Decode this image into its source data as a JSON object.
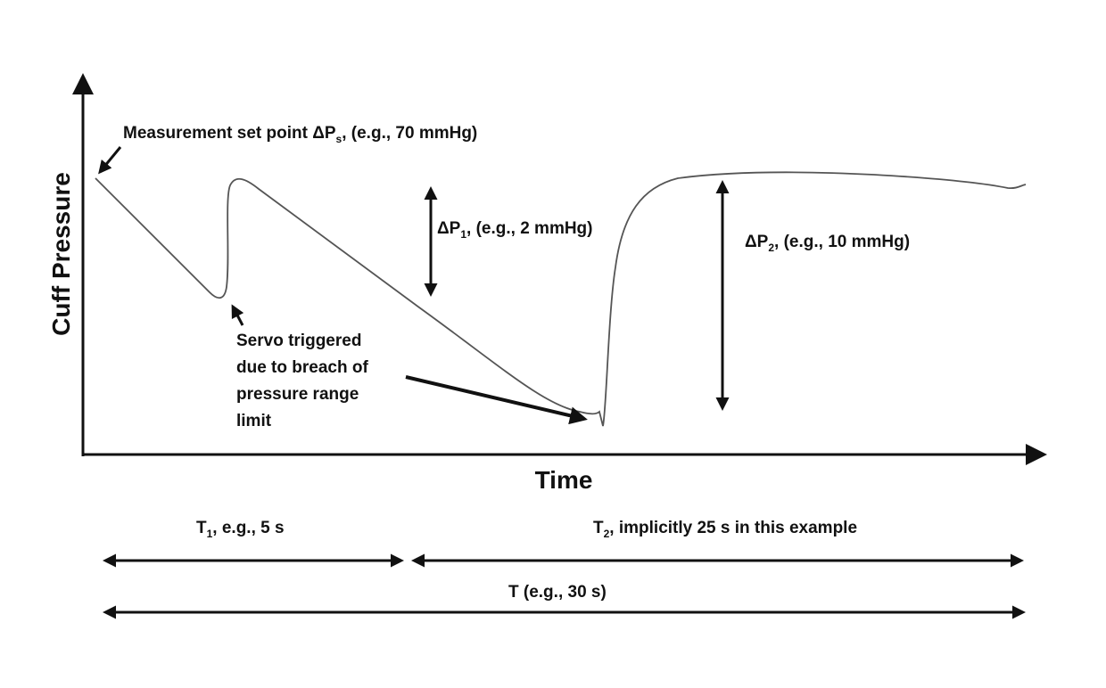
{
  "axes": {
    "y_label": "Cuff Pressure",
    "x_label": "Time"
  },
  "annotations": {
    "set_point": {
      "prefix": "Measurement set point ΔP",
      "sub": "s",
      "suffix": ", (e.g., 70 mmHg)"
    },
    "dp1": {
      "prefix": "ΔP",
      "sub": "1",
      "suffix": ", (e.g., 2 mmHg)"
    },
    "dp2": {
      "prefix": "ΔP",
      "sub": "2",
      "suffix": ", (e.g., 10 mmHg)"
    },
    "servo": {
      "lines": [
        "Servo triggered",
        "due to breach of",
        "pressure range",
        "limit"
      ]
    }
  },
  "timing": {
    "t1": {
      "prefix": "T",
      "sub": "1",
      "suffix": ", e.g., 5 s"
    },
    "t2": {
      "prefix": "T",
      "sub": "2",
      "suffix": ", implicitly 25 s in this example"
    },
    "t": "T (e.g., 30 s)"
  },
  "colors": {
    "ink": "#111111",
    "curve": "#555555"
  }
}
